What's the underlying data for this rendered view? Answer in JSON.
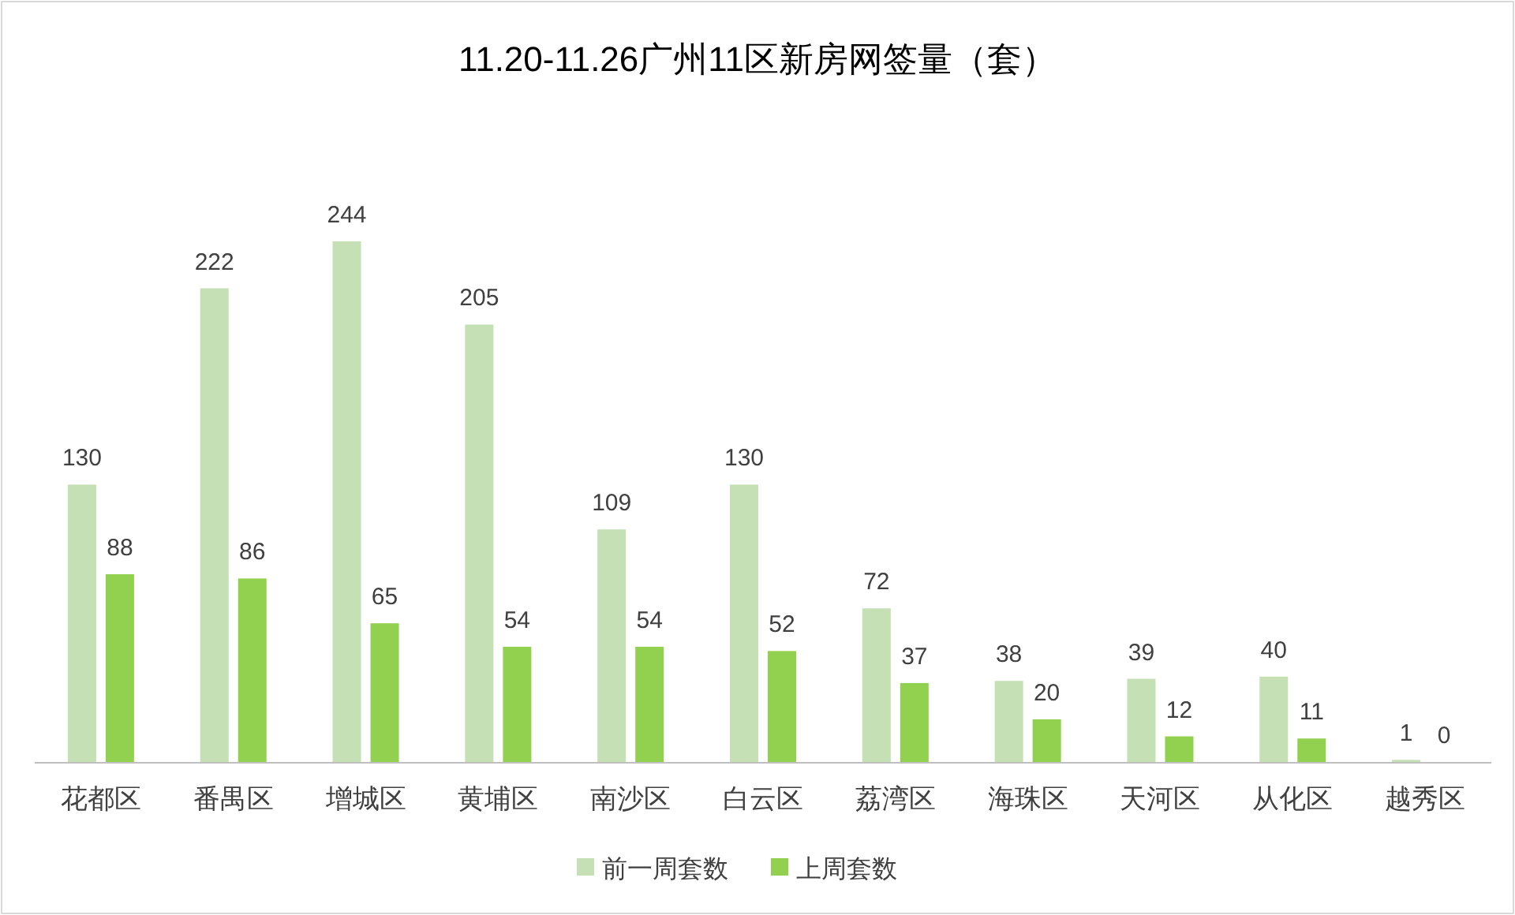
{
  "chart_data": {
    "type": "bar",
    "title": "11.20-11.26广州11区新房网签量（套）",
    "categories": [
      "花都区",
      "番禺区",
      "增城区",
      "黄埔区",
      "南沙区",
      "白云区",
      "荔湾区",
      "海珠区",
      "天河区",
      "从化区",
      "越秀区"
    ],
    "series": [
      {
        "name": "前一周套数",
        "color": "#c5e0b4",
        "values": [
          130,
          222,
          244,
          205,
          109,
          130,
          72,
          38,
          39,
          40,
          1
        ]
      },
      {
        "name": "上周套数",
        "color": "#92d050",
        "values": [
          88,
          86,
          65,
          54,
          54,
          52,
          37,
          20,
          12,
          11,
          0
        ]
      }
    ],
    "data_labels": true,
    "legend": "bottom",
    "grid": false
  }
}
